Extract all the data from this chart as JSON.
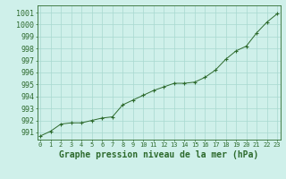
{
  "x": [
    0,
    1,
    2,
    3,
    4,
    5,
    6,
    7,
    8,
    9,
    10,
    11,
    12,
    13,
    14,
    15,
    16,
    17,
    18,
    19,
    20,
    21,
    22,
    23
  ],
  "y": [
    990.7,
    991.1,
    991.7,
    991.8,
    991.8,
    992.0,
    992.2,
    992.3,
    993.3,
    993.7,
    994.1,
    994.5,
    994.8,
    995.1,
    995.1,
    995.2,
    995.6,
    996.2,
    997.1,
    997.8,
    998.2,
    999.3,
    1000.2,
    1000.9
  ],
  "line_color": "#2d6a2d",
  "marker": "+",
  "marker_color": "#2d6a2d",
  "marker_size": 3.5,
  "marker_linewidth": 0.8,
  "line_width": 0.7,
  "background_color": "#cff0ea",
  "grid_color": "#a8d8d0",
  "xlabel": "Graphe pression niveau de la mer (hPa)",
  "xlabel_fontsize": 7,
  "ytick_fontsize": 6,
  "xtick_fontsize": 5,
  "yticks": [
    991,
    992,
    993,
    994,
    995,
    996,
    997,
    998,
    999,
    1000,
    1001
  ],
  "xticks": [
    0,
    1,
    2,
    3,
    4,
    5,
    6,
    7,
    8,
    9,
    10,
    11,
    12,
    13,
    14,
    15,
    16,
    17,
    18,
    19,
    20,
    21,
    22,
    23
  ],
  "ylim": [
    990.4,
    1001.6
  ],
  "xlim": [
    -0.3,
    23.3
  ]
}
